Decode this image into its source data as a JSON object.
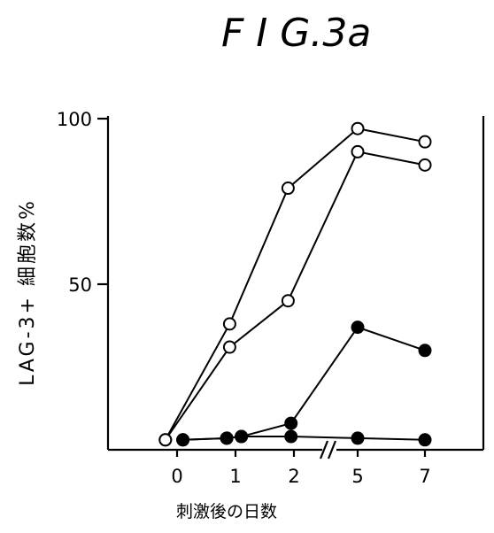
{
  "chart_data": {
    "type": "line",
    "title": "F I G.3a",
    "ylabel": "LAG-3+ 細胞数%",
    "xlabel": "刺激後の日数",
    "categories": [
      "0",
      "1",
      "2",
      "5",
      "7"
    ],
    "x_break_between": [
      "2",
      "5"
    ],
    "y_ticks": [
      50,
      100
    ],
    "ylim": [
      0,
      100
    ],
    "grid": false,
    "legend": "none",
    "series": [
      {
        "marker": "open",
        "x": [
          -0.2,
          0.9,
          1.9,
          5,
          7
        ],
        "values": [
          3,
          38,
          79,
          97,
          93
        ]
      },
      {
        "marker": "open",
        "x": [
          -0.2,
          0.9,
          1.9,
          5,
          7
        ],
        "values": [
          3,
          31,
          45,
          90,
          86
        ]
      },
      {
        "marker": "filled",
        "x": [
          0.1,
          0.85,
          1.1,
          1.95,
          5,
          7
        ],
        "values": [
          3,
          3.5,
          4,
          8,
          37,
          30
        ]
      },
      {
        "marker": "filled",
        "x": [
          0.1,
          0.85,
          1.1,
          1.95,
          5,
          7
        ],
        "values": [
          3,
          3.5,
          4,
          4,
          3.5,
          3
        ]
      }
    ]
  }
}
